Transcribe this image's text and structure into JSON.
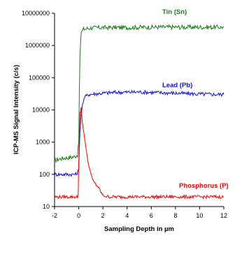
{
  "chart_data": {
    "type": "line",
    "title": "",
    "xlabel": "Sampling Depth in µm",
    "ylabel": "ICP-MS Signal Intensity (c/s)",
    "xlim": [
      -2,
      12
    ],
    "ylim": [
      10,
      10000000
    ],
    "yscale": "log",
    "grid": false,
    "x_ticks": [
      "-2",
      "0",
      "2",
      "4",
      "6",
      "8",
      "10",
      "12"
    ],
    "y_ticks": [
      "10",
      "100",
      "1000",
      "10000",
      "100000",
      "1000000",
      "10000000"
    ],
    "series": [
      {
        "name": "Tin (Sn)",
        "color": "#1a7a1a",
        "points": [
          [
            -2.0,
            270
          ],
          [
            -1.6,
            300
          ],
          [
            -1.2,
            320
          ],
          [
            -0.8,
            330
          ],
          [
            -0.4,
            350
          ],
          [
            -0.1,
            400
          ],
          [
            0.0,
            1000
          ],
          [
            0.05,
            30000
          ],
          [
            0.1,
            500000
          ],
          [
            0.2,
            2500000
          ],
          [
            0.4,
            3200000
          ],
          [
            1.0,
            3500000
          ],
          [
            2.0,
            3600000
          ],
          [
            4.0,
            3600000
          ],
          [
            6.0,
            3700000
          ],
          [
            8.0,
            3700000
          ],
          [
            10.0,
            3700000
          ],
          [
            12.0,
            3700000
          ]
        ]
      },
      {
        "name": "Lead (Pb)",
        "color": "#1010dd",
        "points": [
          [
            -2.0,
            100
          ],
          [
            -1.6,
            100
          ],
          [
            -1.4,
            100
          ],
          [
            -0.8,
            100
          ],
          [
            -0.2,
            100
          ],
          [
            0.0,
            140
          ],
          [
            0.1,
            2000
          ],
          [
            0.2,
            8000
          ],
          [
            0.3,
            15000
          ],
          [
            0.5,
            25000
          ],
          [
            0.8,
            30000
          ],
          [
            1.5,
            32000
          ],
          [
            3.0,
            35000
          ],
          [
            5.0,
            36000
          ],
          [
            8.0,
            33000
          ],
          [
            10.0,
            31000
          ],
          [
            12.0,
            30000
          ]
        ]
      },
      {
        "name": "Phosphorus (P)",
        "color": "#ee0000",
        "points": [
          [
            -2.0,
            20
          ],
          [
            -0.2,
            20
          ],
          [
            -0.05,
            20
          ],
          [
            0.0,
            200
          ],
          [
            0.1,
            8000
          ],
          [
            0.2,
            12000
          ],
          [
            0.3,
            4000
          ],
          [
            0.5,
            1200
          ],
          [
            0.8,
            200
          ],
          [
            1.2,
            60
          ],
          [
            1.6,
            40
          ],
          [
            2.0,
            22
          ],
          [
            2.5,
            20
          ],
          [
            4.0,
            20
          ],
          [
            4.5,
            20
          ],
          [
            6.0,
            20
          ],
          [
            8.0,
            20
          ],
          [
            10.0,
            20
          ],
          [
            12.0,
            20
          ]
        ]
      }
    ]
  }
}
